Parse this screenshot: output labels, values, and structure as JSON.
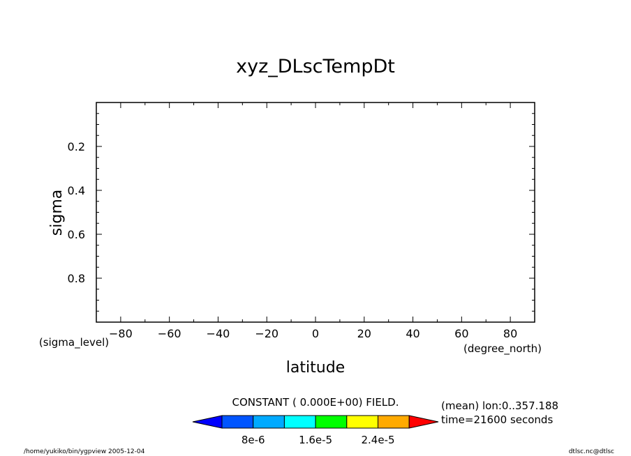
{
  "chart_data": {
    "type": "heatmap",
    "title": "xyz_DLscTempDt",
    "xlabel": "latitude",
    "ylabel": "sigma",
    "x_unit": "(degree_north)",
    "y_unit": "(sigma_level)",
    "xlim": [
      -90,
      90
    ],
    "ylim": [
      0.0,
      1.0
    ],
    "y_inverted": true,
    "x_ticks": [
      -80,
      -60,
      -40,
      -20,
      0,
      20,
      40,
      60,
      80
    ],
    "x_minor_step": 10,
    "y_ticks": [
      0.2,
      0.4,
      0.6,
      0.8
    ],
    "y_minor_step": 0.05,
    "field_message": "CONSTANT ( 0.000E+00) FIELD.",
    "colorbar": {
      "colors": [
        "#0000ff",
        "#0055ff",
        "#00aaff",
        "#00ffff",
        "#00ff00",
        "#ffff00",
        "#ffaa00",
        "#ff0000"
      ],
      "labels": [
        "8e-6",
        "1.6e-5",
        "2.4e-5"
      ]
    },
    "annotations": [
      "(mean) lon:0..357.188",
      "time=21600 seconds"
    ]
  },
  "footer": {
    "left": "/home/yukiko/bin/ygpview  2005-12-04",
    "right": "dtlsc.nc@dtlsc"
  }
}
